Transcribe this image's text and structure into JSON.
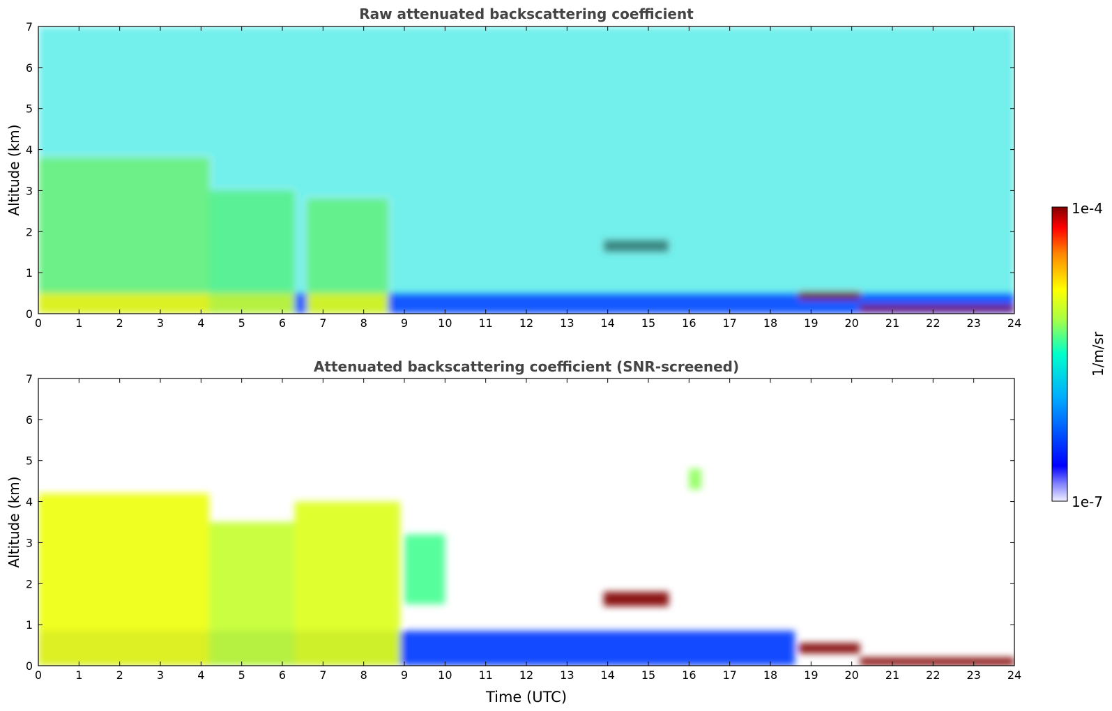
{
  "chart_data": [
    {
      "type": "heatmap",
      "title": "Raw attenuated backscattering coefficient",
      "xlabel": "",
      "ylabel": "Altitude (km)",
      "xlim": [
        0,
        24
      ],
      "ylim": [
        0,
        7
      ],
      "x_ticks": [
        "0",
        "1",
        "2",
        "3",
        "4",
        "5",
        "6",
        "7",
        "8",
        "9",
        "10",
        "11",
        "12",
        "13",
        "14",
        "15",
        "16",
        "17",
        "18",
        "19",
        "20",
        "21",
        "22",
        "23",
        "24"
      ],
      "y_ticks": [
        "0",
        "1",
        "2",
        "3",
        "4",
        "5",
        "6",
        "7"
      ],
      "features": [
        {
          "kind": "boundary-layer",
          "x": [
            0,
            24
          ],
          "y": [
            0,
            0.5
          ],
          "level": 0.22
        },
        {
          "kind": "aerosol-plume",
          "x": [
            0,
            4.2
          ],
          "y": [
            0,
            3.8
          ],
          "level": 0.7
        },
        {
          "kind": "aerosol-plume",
          "x": [
            4.2,
            6.3
          ],
          "y": [
            0,
            3.0
          ],
          "level": 0.65
        },
        {
          "kind": "aerosol-plume",
          "x": [
            6.6,
            8.6
          ],
          "y": [
            0,
            2.8
          ],
          "level": 0.68
        },
        {
          "kind": "cloud",
          "x": [
            13.9,
            15.5
          ],
          "y": [
            1.5,
            1.8
          ],
          "level": 1.0
        },
        {
          "kind": "cloud",
          "x": [
            18.7,
            20.2
          ],
          "y": [
            0.35,
            0.55
          ],
          "level": 1.0
        },
        {
          "kind": "cloud",
          "x": [
            20.2,
            24
          ],
          "y": [
            0.05,
            0.2
          ],
          "level": 1.0
        },
        {
          "kind": "noise-free-troposphere",
          "x": [
            0,
            24
          ],
          "y": [
            0.5,
            7
          ],
          "level": 0.45
        }
      ]
    },
    {
      "type": "heatmap",
      "title": "Attenuated backscattering coefficient (SNR-screened)",
      "xlabel": "Time (UTC)",
      "ylabel": "Altitude (km)",
      "xlim": [
        0,
        24
      ],
      "ylim": [
        0,
        7
      ],
      "x_ticks": [
        "0",
        "1",
        "2",
        "3",
        "4",
        "5",
        "6",
        "7",
        "8",
        "9",
        "10",
        "11",
        "12",
        "13",
        "14",
        "15",
        "16",
        "17",
        "18",
        "19",
        "20",
        "21",
        "22",
        "23",
        "24"
      ],
      "y_ticks": [
        "0",
        "1",
        "2",
        "3",
        "4",
        "5",
        "6",
        "7"
      ],
      "features": [
        {
          "kind": "boundary-layer",
          "x": [
            0,
            18.6
          ],
          "y": [
            0,
            0.85
          ],
          "level": 0.2
        },
        {
          "kind": "aerosol-plume",
          "x": [
            0,
            4.2
          ],
          "y": [
            0,
            4.2
          ],
          "level": 0.7
        },
        {
          "kind": "aerosol-plume",
          "x": [
            4.2,
            6.3
          ],
          "y": [
            0,
            3.5
          ],
          "level": 0.65
        },
        {
          "kind": "aerosol-plume",
          "x": [
            6.3,
            8.9
          ],
          "y": [
            0,
            4.0
          ],
          "level": 0.68
        },
        {
          "kind": "aerosol-patch",
          "x": [
            9.0,
            10.0
          ],
          "y": [
            1.5,
            3.2
          ],
          "level": 0.55
        },
        {
          "kind": "aerosol-patch",
          "x": [
            16.0,
            16.3
          ],
          "y": [
            4.3,
            4.8
          ],
          "level": 0.6
        },
        {
          "kind": "cloud",
          "x": [
            13.9,
            15.5
          ],
          "y": [
            1.45,
            1.8
          ],
          "level": 1.0
        },
        {
          "kind": "cloud",
          "x": [
            18.7,
            20.2
          ],
          "y": [
            0.3,
            0.55
          ],
          "level": 1.0
        },
        {
          "kind": "cloud",
          "x": [
            20.2,
            24
          ],
          "y": [
            0.0,
            0.2
          ],
          "level": 1.0
        }
      ]
    }
  ],
  "colorbar": {
    "min_label": "1e-7",
    "max_label": "1e-4",
    "unit_label": "1/m/sr",
    "colormap": "jet"
  }
}
